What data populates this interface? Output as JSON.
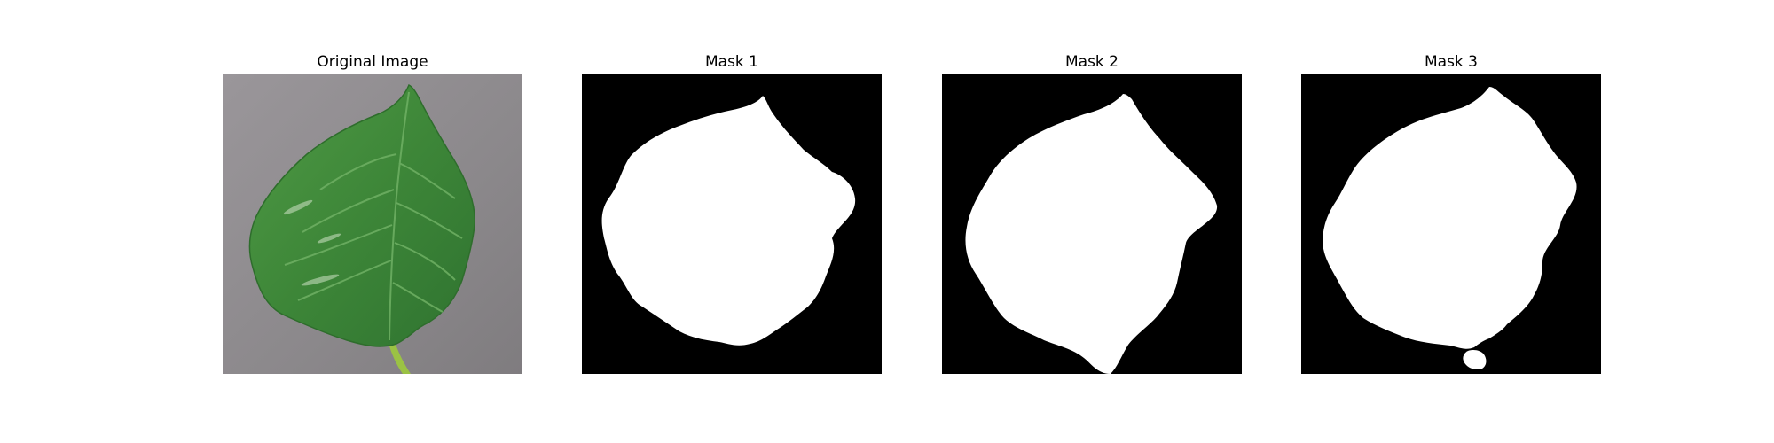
{
  "figure": {
    "panels": [
      {
        "title": "Original Image"
      },
      {
        "title": "Mask 1"
      },
      {
        "title": "Mask 2"
      },
      {
        "title": "Mask 3"
      }
    ]
  },
  "colors": {
    "mask_background": "#000000",
    "mask_foreground": "#ffffff",
    "leaf_green": "#3f8a3a",
    "photo_background": "#8d8a8d",
    "stem": "#9bc244"
  }
}
